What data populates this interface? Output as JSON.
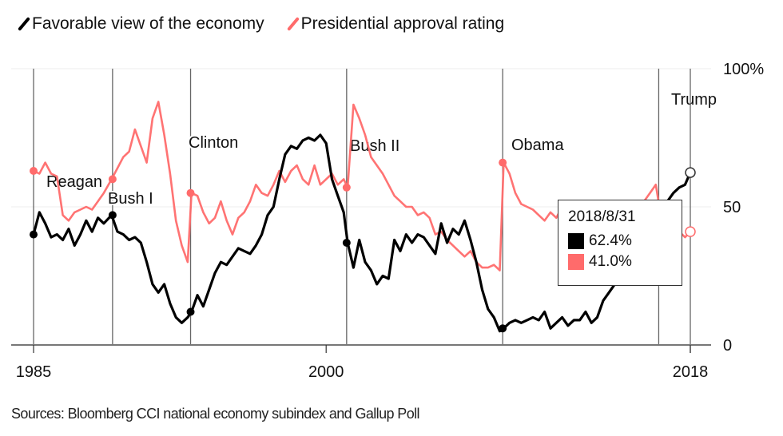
{
  "legend": [
    {
      "label": "Favorable view of the economy",
      "color": "#000000"
    },
    {
      "label": "Presidential approval rating",
      "color": "#ff6b6b"
    }
  ],
  "source": "Sources: Bloomberg CCI national economy subindex and Gallup Poll",
  "tooltip": {
    "date": "2018/8/31",
    "values": [
      {
        "value": "62.4%",
        "color": "#000000"
      },
      {
        "value": "41.0%",
        "color": "#ff6b6b"
      }
    ]
  },
  "chart_data": {
    "type": "line",
    "title": "",
    "xlabel": "",
    "ylabel": "",
    "xlim": [
      1985,
      2018.67
    ],
    "ylim": [
      0,
      100
    ],
    "x_ticks": [
      {
        "value": 1985,
        "label": "1985"
      },
      {
        "value": 2000,
        "label": "2000"
      },
      {
        "value": 2018,
        "label": "2018"
      }
    ],
    "y_ticks": [
      {
        "value": 0,
        "label": "0"
      },
      {
        "value": 50,
        "label": "50"
      },
      {
        "value": 100,
        "label": "100%"
      }
    ],
    "legend_position": "top-left",
    "presidents": [
      {
        "name": "Reagan",
        "start": 1985.0
      },
      {
        "name": "Bush I",
        "start": 1989.05
      },
      {
        "name": "Clinton",
        "start": 1993.05
      },
      {
        "name": "Bush II",
        "start": 2001.05
      },
      {
        "name": "Obama",
        "start": 2009.05
      },
      {
        "name": "Trump",
        "start": 2017.05
      }
    ],
    "series": [
      {
        "name": "Favorable view of the economy",
        "color": "#000000",
        "x": [
          1985.0,
          1985.3,
          1985.6,
          1985.9,
          1986.2,
          1986.5,
          1986.8,
          1987.1,
          1987.4,
          1987.7,
          1988.0,
          1988.3,
          1988.6,
          1989.0,
          1989.3,
          1989.6,
          1989.9,
          1990.2,
          1990.5,
          1990.8,
          1991.1,
          1991.4,
          1991.7,
          1992.0,
          1992.3,
          1992.6,
          1992.9,
          1993.1,
          1993.4,
          1993.7,
          1994.0,
          1994.3,
          1994.6,
          1994.9,
          1995.2,
          1995.5,
          1995.8,
          1996.1,
          1996.4,
          1996.7,
          1997.0,
          1997.3,
          1997.6,
          1997.9,
          1998.2,
          1998.5,
          1998.8,
          1999.1,
          1999.4,
          1999.7,
          2000.0,
          2000.3,
          2000.6,
          2000.9,
          2001.1,
          2001.4,
          2001.7,
          2002.0,
          2002.3,
          2002.6,
          2002.9,
          2003.2,
          2003.5,
          2003.8,
          2004.1,
          2004.4,
          2004.7,
          2005.0,
          2005.3,
          2005.6,
          2005.9,
          2006.2,
          2006.5,
          2006.8,
          2007.1,
          2007.4,
          2007.7,
          2008.0,
          2008.3,
          2008.6,
          2008.9,
          2009.1,
          2009.4,
          2009.7,
          2010.0,
          2010.3,
          2010.6,
          2010.9,
          2011.2,
          2011.5,
          2011.8,
          2012.1,
          2012.4,
          2012.7,
          2013.0,
          2013.3,
          2013.6,
          2013.9,
          2014.2,
          2014.5,
          2014.8,
          2015.1,
          2015.4,
          2015.7,
          2016.0,
          2016.3,
          2016.6,
          2016.9,
          2017.2,
          2017.5,
          2017.8,
          2018.1,
          2018.4,
          2018.67
        ],
        "values": [
          40,
          48,
          44,
          39,
          40,
          38,
          42,
          36,
          40,
          45,
          41,
          46,
          44,
          47,
          41,
          40,
          38,
          39,
          37,
          30,
          22,
          19,
          22,
          15,
          10,
          8,
          10,
          12,
          18,
          14,
          20,
          26,
          30,
          29,
          32,
          35,
          34,
          33,
          36,
          40,
          47,
          50,
          60,
          69,
          72,
          71,
          74,
          75,
          74,
          76,
          73,
          60,
          54,
          48,
          37,
          28,
          38,
          30,
          27,
          22,
          25,
          24,
          38,
          34,
          40,
          37,
          40,
          39,
          36,
          33,
          44,
          37,
          42,
          40,
          45,
          38,
          30,
          20,
          13,
          10,
          5,
          6,
          8,
          9,
          8,
          9,
          10,
          9,
          12,
          6,
          8,
          10,
          7,
          9,
          9,
          12,
          8,
          10,
          16,
          19,
          22,
          30,
          26,
          29,
          34,
          36,
          42,
          45,
          48,
          52,
          55,
          57,
          58,
          62.4
        ]
      },
      {
        "name": "Presidential approval rating",
        "color": "#ff6b6b",
        "x": [
          1985.0,
          1985.3,
          1985.6,
          1985.9,
          1986.2,
          1986.5,
          1986.8,
          1987.1,
          1987.4,
          1987.7,
          1988.0,
          1988.3,
          1988.6,
          1989.0,
          1989.3,
          1989.6,
          1989.9,
          1990.2,
          1990.5,
          1990.8,
          1991.1,
          1991.4,
          1991.7,
          1992.0,
          1992.3,
          1992.6,
          1992.9,
          1993.1,
          1993.4,
          1993.7,
          1994.0,
          1994.3,
          1994.6,
          1994.9,
          1995.2,
          1995.5,
          1995.8,
          1996.1,
          1996.4,
          1996.7,
          1997.0,
          1997.3,
          1997.6,
          1997.9,
          1998.2,
          1998.5,
          1998.8,
          1999.1,
          1999.4,
          1999.7,
          2000.0,
          2000.3,
          2000.6,
          2000.9,
          2001.1,
          2001.4,
          2001.7,
          2002.0,
          2002.3,
          2002.6,
          2002.9,
          2003.2,
          2003.5,
          2003.8,
          2004.1,
          2004.4,
          2004.7,
          2005.0,
          2005.3,
          2005.6,
          2005.9,
          2006.2,
          2006.5,
          2006.8,
          2007.1,
          2007.4,
          2007.7,
          2008.0,
          2008.3,
          2008.6,
          2008.9,
          2009.1,
          2009.4,
          2009.7,
          2010.0,
          2010.3,
          2010.6,
          2010.9,
          2011.2,
          2011.5,
          2011.8,
          2012.1,
          2012.4,
          2012.7,
          2013.0,
          2013.3,
          2013.6,
          2013.9,
          2014.2,
          2014.5,
          2014.8,
          2015.1,
          2015.4,
          2015.7,
          2016.0,
          2016.3,
          2016.6,
          2016.9,
          2017.2,
          2017.5,
          2017.8,
          2018.1,
          2018.4,
          2018.67
        ],
        "values": [
          63,
          62,
          66,
          62,
          61,
          47,
          45,
          48,
          49,
          50,
          49,
          52,
          55,
          60,
          64,
          68,
          70,
          78,
          72,
          66,
          82,
          88,
          76,
          62,
          45,
          36,
          30,
          55,
          54,
          48,
          44,
          46,
          52,
          45,
          40,
          46,
          48,
          52,
          58,
          55,
          54,
          58,
          63,
          59,
          63,
          65,
          60,
          58,
          65,
          58,
          60,
          62,
          58,
          60,
          57,
          87,
          82,
          76,
          68,
          65,
          62,
          58,
          54,
          52,
          50,
          50,
          47,
          48,
          46,
          40,
          41,
          38,
          36,
          34,
          32,
          34,
          30,
          28,
          28,
          29,
          27,
          66,
          62,
          55,
          51,
          50,
          49,
          47,
          45,
          48,
          46,
          50,
          48,
          52,
          50,
          47,
          45,
          44,
          45,
          46,
          48,
          46,
          52,
          50,
          48,
          52,
          55,
          58,
          45,
          42,
          40,
          41,
          39,
          41
        ]
      }
    ]
  }
}
